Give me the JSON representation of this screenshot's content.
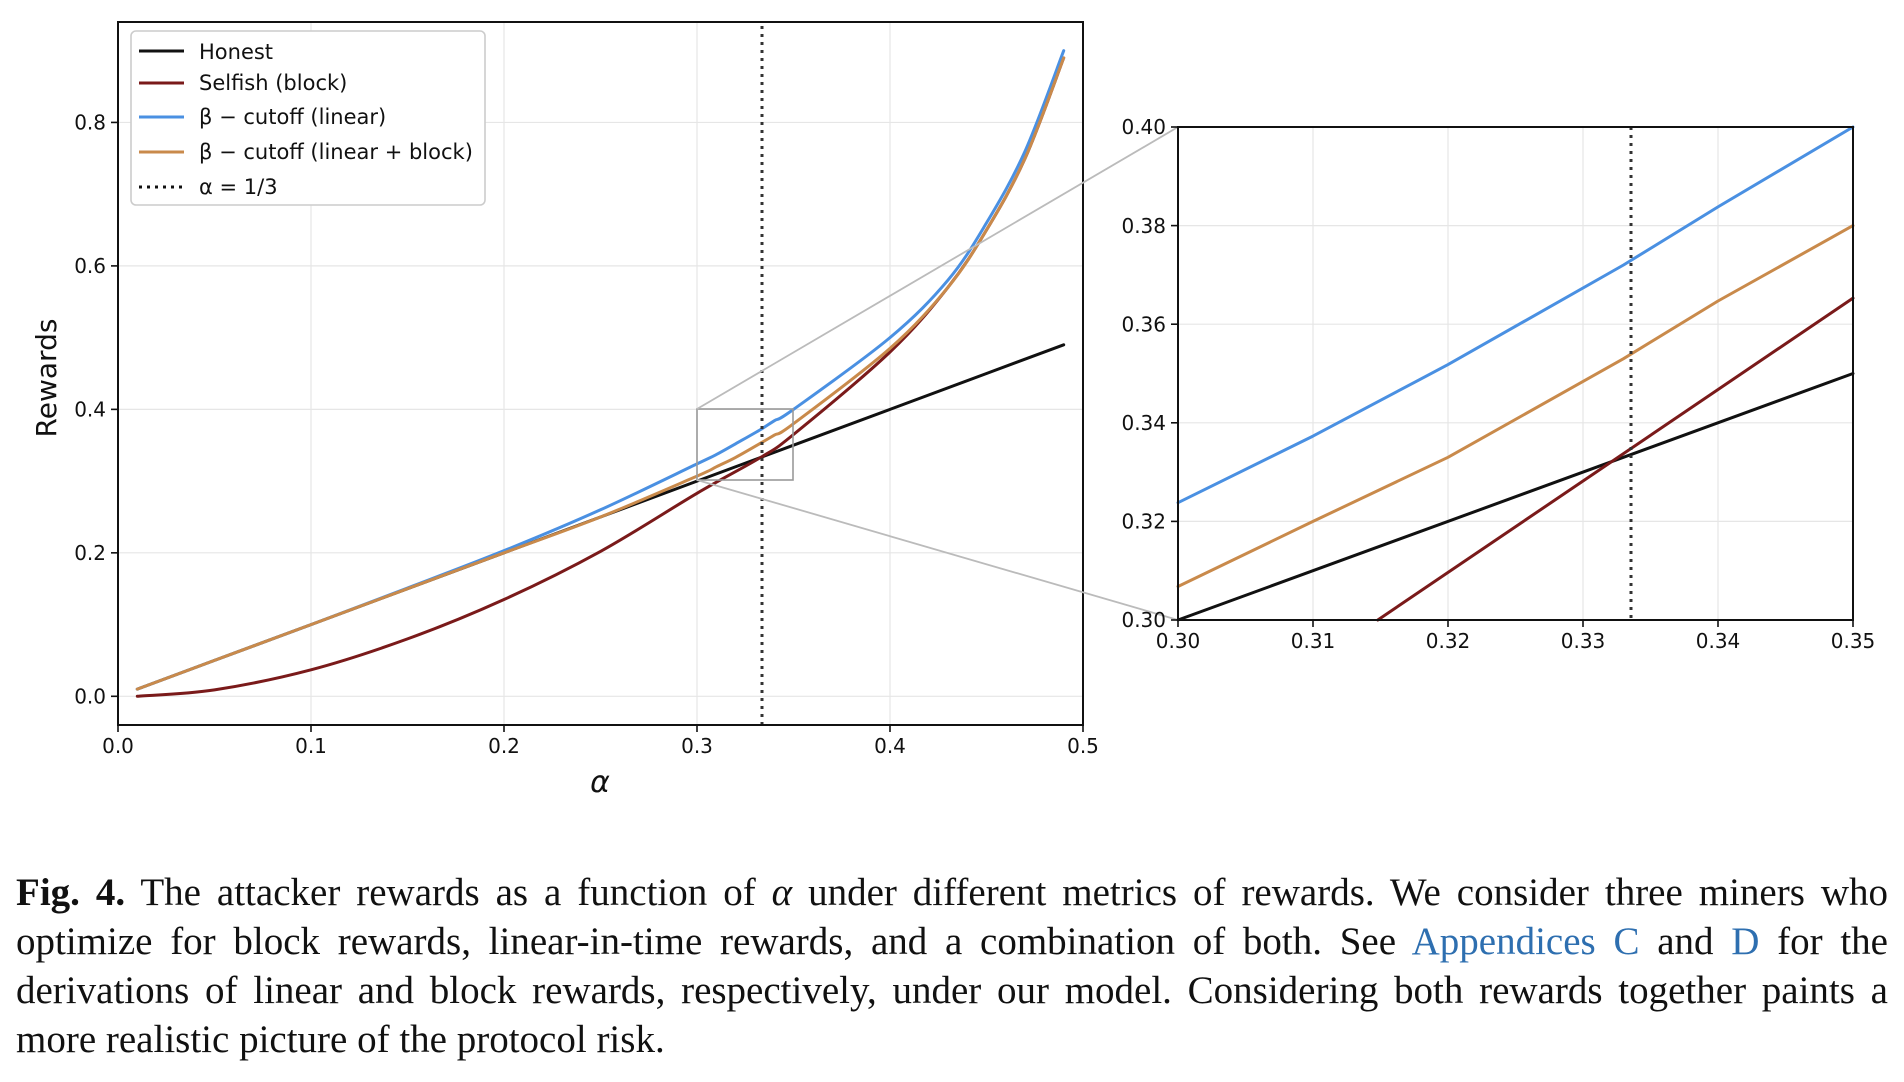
{
  "colors": {
    "honest": "#111111",
    "selfish": "#7a1a1a",
    "beta_linear": "#4a90e2",
    "beta_linear_block": "#c98a4b",
    "grid": "#e6e6e6",
    "link": "#2e6fb0"
  },
  "legend": {
    "honest": "Honest",
    "selfish": "Selfish (block)",
    "beta_linear": "β − cutoff (linear)",
    "beta_linear_block": "β − cutoff (linear + block)",
    "alpha_line": "α = 1/3"
  },
  "chart_data": [
    {
      "type": "line",
      "panel": "main",
      "xlabel": "α",
      "ylabel": "Rewards",
      "xlim": [
        0.0,
        0.5
      ],
      "ylim": [
        -0.04,
        0.94
      ],
      "xticks": [
        "0.0",
        "0.1",
        "0.2",
        "0.3",
        "0.4",
        "0.5"
      ],
      "yticks": [
        "0.0",
        "0.2",
        "0.4",
        "0.6",
        "0.8"
      ],
      "grid": true,
      "legend_position": "upper-left",
      "vline_x": 0.3333,
      "zoom_box": {
        "x": [
          0.3,
          0.35
        ],
        "y": [
          0.3,
          0.4
        ]
      },
      "series": [
        {
          "name": "Honest",
          "key": "honest",
          "x": [
            0.01,
            0.05,
            0.1,
            0.15,
            0.2,
            0.25,
            0.3,
            0.35,
            0.4,
            0.45,
            0.49
          ],
          "y": [
            0.01,
            0.05,
            0.1,
            0.15,
            0.2,
            0.25,
            0.3,
            0.35,
            0.4,
            0.45,
            0.49
          ]
        },
        {
          "name": "Selfish (block)",
          "key": "selfish",
          "x": [
            0.01,
            0.05,
            0.1,
            0.15,
            0.2,
            0.25,
            0.3,
            0.333,
            0.35,
            0.4,
            0.43,
            0.45,
            0.47,
            0.49
          ],
          "y": [
            0.0,
            0.009,
            0.037,
            0.08,
            0.135,
            0.202,
            0.283,
            0.333,
            0.365,
            0.48,
            0.57,
            0.65,
            0.75,
            0.89
          ],
          "smooth": true
        },
        {
          "name": "β − cutoff (linear)",
          "key": "beta_linear",
          "x": [
            0.01,
            0.05,
            0.1,
            0.15,
            0.2,
            0.25,
            0.3,
            0.31,
            0.32,
            0.333,
            0.34,
            0.35,
            0.4,
            0.43,
            0.45,
            0.47,
            0.49
          ],
          "y": [
            0.01,
            0.05,
            0.1,
            0.151,
            0.203,
            0.26,
            0.324,
            0.337,
            0.352,
            0.372,
            0.384,
            0.4,
            0.5,
            0.58,
            0.66,
            0.76,
            0.9
          ],
          "smooth": true
        },
        {
          "name": "β − cutoff (linear + block)",
          "key": "beta_linear_block",
          "x": [
            0.01,
            0.05,
            0.1,
            0.15,
            0.2,
            0.25,
            0.3,
            0.31,
            0.32,
            0.333,
            0.34,
            0.35,
            0.4,
            0.43,
            0.45,
            0.47,
            0.49
          ],
          "y": [
            0.01,
            0.05,
            0.1,
            0.15,
            0.2,
            0.25,
            0.307,
            0.32,
            0.333,
            0.353,
            0.364,
            0.38,
            0.485,
            0.57,
            0.65,
            0.75,
            0.89
          ],
          "smooth": true
        }
      ]
    },
    {
      "type": "line",
      "panel": "zoom",
      "xlim": [
        0.3,
        0.35
      ],
      "ylim": [
        0.3,
        0.4
      ],
      "xticks": [
        "0.30",
        "0.31",
        "0.32",
        "0.33",
        "0.34",
        "0.35"
      ],
      "yticks": [
        "0.30",
        "0.32",
        "0.34",
        "0.36",
        "0.38",
        "0.40"
      ],
      "grid": true,
      "vline_x": 0.3333,
      "series": [
        {
          "name": "Honest",
          "key": "honest",
          "x": [
            0.3,
            0.35
          ],
          "y": [
            0.3,
            0.35
          ]
        },
        {
          "name": "Selfish (block)",
          "key": "selfish",
          "x": [
            0.3148,
            0.35
          ],
          "y": [
            0.3,
            0.3653
          ]
        },
        {
          "name": "β − cutoff (linear)",
          "key": "beta_linear",
          "x": [
            0.3,
            0.31,
            0.32,
            0.333,
            0.34,
            0.35
          ],
          "y": [
            0.3238,
            0.3373,
            0.3518,
            0.372,
            0.3838,
            0.4
          ]
        },
        {
          "name": "β − cutoff (linear + block)",
          "key": "beta_linear_block",
          "x": [
            0.3,
            0.31,
            0.32,
            0.333,
            0.34,
            0.35
          ],
          "y": [
            0.3068,
            0.32,
            0.333,
            0.353,
            0.3647,
            0.38
          ]
        }
      ]
    }
  ],
  "caption": {
    "label": "Fig. 4.",
    "part1": " The attacker rewards as a function of ",
    "alpha": "α",
    "part2": " under different metrics of rewards. We consider three miners who optimize for block rewards, linear-in-time rewards, and a combination of both. See ",
    "link1": "Appendices C",
    "part3": " and ",
    "link2": "D",
    "part4": " for the derivations of linear and block rewards, respectively, under our model. Considering both rewards together paints a more realistic picture of the protocol risk."
  }
}
